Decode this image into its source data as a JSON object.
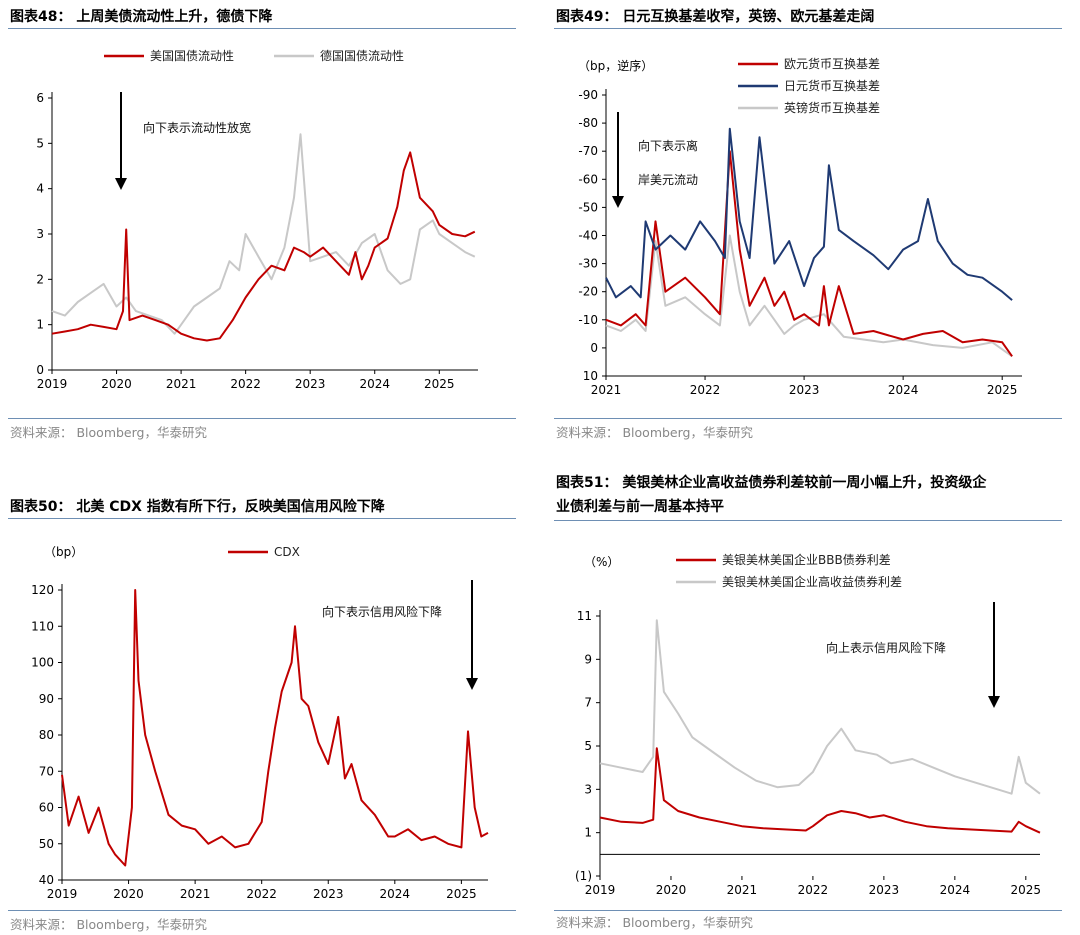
{
  "panels": [
    {
      "title": "图表48：  上周美债流动性上升，德债下降",
      "source": "资料来源：  Bloomberg，华泰研究",
      "chart_data": {
        "type": "line",
        "title": "上周美债流动性上升，德债下降",
        "ylabel": "",
        "xlabel": "",
        "x_ticks": [
          "2019",
          "2020",
          "2021",
          "2022",
          "2023",
          "2024",
          "2025"
        ],
        "y_ticks": [
          "0",
          "1",
          "2",
          "3",
          "4",
          "5",
          "6"
        ],
        "ylim": [
          0,
          6
        ],
        "xlim": [
          2019.0,
          2025.6
        ],
        "annotation": "向下表示流动性放宽",
        "series": [
          {
            "name": "美国国债流动性",
            "color": "#c00000",
            "x": [
              2019.0,
              2019.2,
              2019.4,
              2019.6,
              2019.8,
              2020.0,
              2020.1,
              2020.15,
              2020.2,
              2020.4,
              2020.6,
              2020.8,
              2021.0,
              2021.2,
              2021.4,
              2021.6,
              2021.8,
              2022.0,
              2022.2,
              2022.4,
              2022.6,
              2022.75,
              2022.9,
              2023.0,
              2023.2,
              2023.4,
              2023.6,
              2023.7,
              2023.8,
              2023.9,
              2024.0,
              2024.2,
              2024.35,
              2024.45,
              2024.55,
              2024.7,
              2024.9,
              2025.0,
              2025.2,
              2025.4,
              2025.55
            ],
            "y": [
              0.8,
              0.85,
              0.9,
              1.0,
              0.95,
              0.9,
              1.3,
              3.1,
              1.1,
              1.2,
              1.1,
              1.0,
              0.8,
              0.7,
              0.65,
              0.7,
              1.1,
              1.6,
              2.0,
              2.3,
              2.2,
              2.7,
              2.6,
              2.5,
              2.7,
              2.4,
              2.1,
              2.6,
              2.0,
              2.3,
              2.7,
              2.9,
              3.6,
              4.4,
              4.8,
              3.8,
              3.5,
              3.2,
              3.0,
              2.95,
              3.05
            ]
          },
          {
            "name": "德国国债流动性",
            "color": "#c8c8c8",
            "x": [
              2019.0,
              2019.2,
              2019.4,
              2019.6,
              2019.8,
              2020.0,
              2020.15,
              2020.3,
              2020.5,
              2020.7,
              2020.9,
              2021.0,
              2021.2,
              2021.4,
              2021.6,
              2021.75,
              2021.9,
              2022.0,
              2022.2,
              2022.4,
              2022.6,
              2022.75,
              2022.85,
              2023.0,
              2023.2,
              2023.4,
              2023.6,
              2023.8,
              2024.0,
              2024.2,
              2024.4,
              2024.55,
              2024.7,
              2024.9,
              2025.0,
              2025.2,
              2025.4,
              2025.55
            ],
            "y": [
              1.3,
              1.2,
              1.5,
              1.7,
              1.9,
              1.4,
              1.6,
              1.3,
              1.2,
              1.1,
              0.8,
              1.0,
              1.4,
              1.6,
              1.8,
              2.4,
              2.2,
              3.0,
              2.5,
              2.0,
              2.7,
              3.8,
              5.2,
              2.4,
              2.5,
              2.6,
              2.3,
              2.8,
              3.0,
              2.2,
              1.9,
              2.0,
              3.1,
              3.3,
              3.0,
              2.8,
              2.6,
              2.5
            ]
          }
        ]
      }
    },
    {
      "title": "图表49：  日元互换基差收窄，英镑、欧元基差走阔",
      "source": "资料来源：  Bloomberg，华泰研究",
      "chart_data": {
        "type": "line",
        "title": "日元互换基差收窄，英镑、欧元基差走阔",
        "unit_label": "（bp，逆序）",
        "x_ticks": [
          "2021",
          "2022",
          "2023",
          "2024",
          "2025"
        ],
        "y_ticks": [
          "-90",
          "-80",
          "-70",
          "-60",
          "-50",
          "-40",
          "-30",
          "-20",
          "-10",
          "0",
          "10"
        ],
        "ylim": [
          -90,
          10
        ],
        "y_inverted": true,
        "xlim": [
          2021.0,
          2025.2
        ],
        "annotation": [
          "向下表示离",
          "岸美元流动"
        ],
        "series": [
          {
            "name": "欧元货币互换基差",
            "color": "#c00000",
            "x": [
              2021.0,
              2021.15,
              2021.3,
              2021.4,
              2021.5,
              2021.6,
              2021.8,
              2022.0,
              2022.15,
              2022.25,
              2022.35,
              2022.45,
              2022.6,
              2022.7,
              2022.8,
              2022.9,
              2023.0,
              2023.15,
              2023.2,
              2023.25,
              2023.35,
              2023.5,
              2023.7,
              2023.9,
              2024.0,
              2024.2,
              2024.4,
              2024.6,
              2024.8,
              2025.0,
              2025.1
            ],
            "y": [
              -10,
              -8,
              -12,
              -8,
              -45,
              -20,
              -25,
              -18,
              -12,
              -70,
              -35,
              -15,
              -25,
              -15,
              -20,
              -10,
              -12,
              -8,
              -22,
              -8,
              -22,
              -5,
              -6,
              -4,
              -3,
              -5,
              -6,
              -2,
              -3,
              -2,
              3
            ]
          },
          {
            "name": "日元货币互换基差",
            "color": "#1f3a73",
            "x": [
              2021.0,
              2021.1,
              2021.25,
              2021.35,
              2021.4,
              2021.5,
              2021.65,
              2021.8,
              2021.95,
              2022.1,
              2022.2,
              2022.25,
              2022.35,
              2022.45,
              2022.55,
              2022.7,
              2022.85,
              2023.0,
              2023.1,
              2023.2,
              2023.25,
              2023.35,
              2023.5,
              2023.7,
              2023.85,
              2024.0,
              2024.15,
              2024.25,
              2024.35,
              2024.5,
              2024.65,
              2024.8,
              2025.0,
              2025.1
            ],
            "y": [
              -25,
              -18,
              -22,
              -18,
              -45,
              -35,
              -40,
              -35,
              -45,
              -38,
              -32,
              -78,
              -45,
              -32,
              -75,
              -30,
              -38,
              -22,
              -32,
              -36,
              -65,
              -42,
              -38,
              -33,
              -28,
              -35,
              -38,
              -53,
              -38,
              -30,
              -26,
              -25,
              -20,
              -17
            ]
          },
          {
            "name": "英镑货币互换基差",
            "color": "#c8c8c8",
            "x": [
              2021.0,
              2021.15,
              2021.3,
              2021.4,
              2021.5,
              2021.6,
              2021.8,
              2022.0,
              2022.15,
              2022.25,
              2022.35,
              2022.45,
              2022.6,
              2022.7,
              2022.8,
              2022.9,
              2023.0,
              2023.2,
              2023.4,
              2023.6,
              2023.8,
              2024.0,
              2024.3,
              2024.6,
              2024.9,
              2025.1
            ],
            "y": [
              -8,
              -6,
              -10,
              -6,
              -38,
              -15,
              -18,
              -12,
              -8,
              -40,
              -20,
              -8,
              -15,
              -10,
              -5,
              -8,
              -10,
              -12,
              -4,
              -3,
              -2,
              -3,
              -1,
              0,
              -2,
              3
            ]
          }
        ]
      }
    },
    {
      "title": "图表50：  北美 CDX 指数有所下行，反映美国信用风险下降",
      "source": "资料来源：  Bloomberg，华泰研究",
      "chart_data": {
        "type": "line",
        "title": "北美 CDX 指数有所下行，反映美国信用风险下降",
        "unit_label": "（bp）",
        "x_ticks": [
          "2019",
          "2020",
          "2021",
          "2022",
          "2023",
          "2024",
          "2025"
        ],
        "y_ticks": [
          "40",
          "50",
          "60",
          "70",
          "80",
          "90",
          "100",
          "110",
          "120"
        ],
        "ylim": [
          40,
          120
        ],
        "xlim": [
          2019.0,
          2025.4
        ],
        "annotation": "向下表示信用风险下降",
        "series": [
          {
            "name": "CDX",
            "color": "#c00000",
            "x": [
              2019.0,
              2019.1,
              2019.25,
              2019.4,
              2019.55,
              2019.7,
              2019.8,
              2019.95,
              2020.05,
              2020.1,
              2020.15,
              2020.25,
              2020.4,
              2020.6,
              2020.8,
              2021.0,
              2021.2,
              2021.4,
              2021.6,
              2021.8,
              2022.0,
              2022.1,
              2022.2,
              2022.3,
              2022.45,
              2022.5,
              2022.6,
              2022.7,
              2022.85,
              2023.0,
              2023.15,
              2023.25,
              2023.35,
              2023.5,
              2023.7,
              2023.9,
              2024.0,
              2024.2,
              2024.4,
              2024.6,
              2024.8,
              2025.0,
              2025.1,
              2025.2,
              2025.3,
              2025.4
            ],
            "y": [
              69,
              55,
              63,
              53,
              60,
              50,
              47,
              44,
              60,
              120,
              95,
              80,
              70,
              58,
              55,
              54,
              50,
              52,
              49,
              50,
              56,
              70,
              82,
              92,
              100,
              110,
              90,
              88,
              78,
              72,
              85,
              68,
              72,
              62,
              58,
              52,
              52,
              54,
              51,
              52,
              50,
              49,
              81,
              60,
              52,
              53
            ]
          }
        ]
      }
    },
    {
      "title": "图表51：  美银美林企业高收益债券利差较前一周小幅上升，投资级企业债利差与前一周基本持平",
      "title_line1": "图表51：  美银美林企业高收益债券利差较前一周小幅上升，投资级企",
      "title_line2": "业债利差与前一周基本持平",
      "source": "资料来源：  Bloomberg，华泰研究",
      "chart_data": {
        "type": "line",
        "title": "美银美林企业高收益债券利差较前一周小幅上升，投资级企业债利差与前一周基本持平",
        "unit_label": "（%）",
        "x_ticks": [
          "2019",
          "2020",
          "2021",
          "2022",
          "2023",
          "2024",
          "2025"
        ],
        "y_ticks": [
          "(1)",
          "1",
          "3",
          "5",
          "7",
          "9",
          "11"
        ],
        "ylim": [
          -1,
          11
        ],
        "xlim": [
          2019.0,
          2025.2
        ],
        "annotation": "向上表示信用风险下降",
        "series": [
          {
            "name": "美银美林美国企业BBB债券利差",
            "color": "#c00000",
            "x": [
              2019.0,
              2019.3,
              2019.6,
              2019.75,
              2019.8,
              2019.9,
              2020.1,
              2020.4,
              2020.7,
              2021.0,
              2021.3,
              2021.6,
              2021.9,
              2022.0,
              2022.2,
              2022.4,
              2022.6,
              2022.8,
              2023.0,
              2023.3,
              2023.6,
              2023.9,
              2024.2,
              2024.5,
              2024.8,
              2024.9,
              2025.0,
              2025.2
            ],
            "y": [
              1.7,
              1.5,
              1.45,
              1.6,
              4.9,
              2.5,
              2.0,
              1.7,
              1.5,
              1.3,
              1.2,
              1.15,
              1.1,
              1.3,
              1.8,
              2.0,
              1.9,
              1.7,
              1.8,
              1.5,
              1.3,
              1.2,
              1.15,
              1.1,
              1.05,
              1.5,
              1.3,
              1.0
            ]
          },
          {
            "name": "美银美林美国企业高收益债券利差",
            "color": "#c8c8c8",
            "x": [
              2019.0,
              2019.3,
              2019.6,
              2019.75,
              2019.8,
              2019.9,
              2020.1,
              2020.3,
              2020.6,
              2020.9,
              2021.2,
              2021.5,
              2021.8,
              2022.0,
              2022.2,
              2022.4,
              2022.6,
              2022.9,
              2023.1,
              2023.4,
              2023.7,
              2024.0,
              2024.3,
              2024.6,
              2024.8,
              2024.9,
              2025.0,
              2025.2
            ],
            "y": [
              4.2,
              4.0,
              3.8,
              4.5,
              10.8,
              7.5,
              6.5,
              5.4,
              4.7,
              4.0,
              3.4,
              3.1,
              3.2,
              3.8,
              5.0,
              5.8,
              4.8,
              4.6,
              4.2,
              4.4,
              4.0,
              3.6,
              3.3,
              3.0,
              2.8,
              4.5,
              3.3,
              2.8
            ]
          }
        ]
      }
    }
  ]
}
